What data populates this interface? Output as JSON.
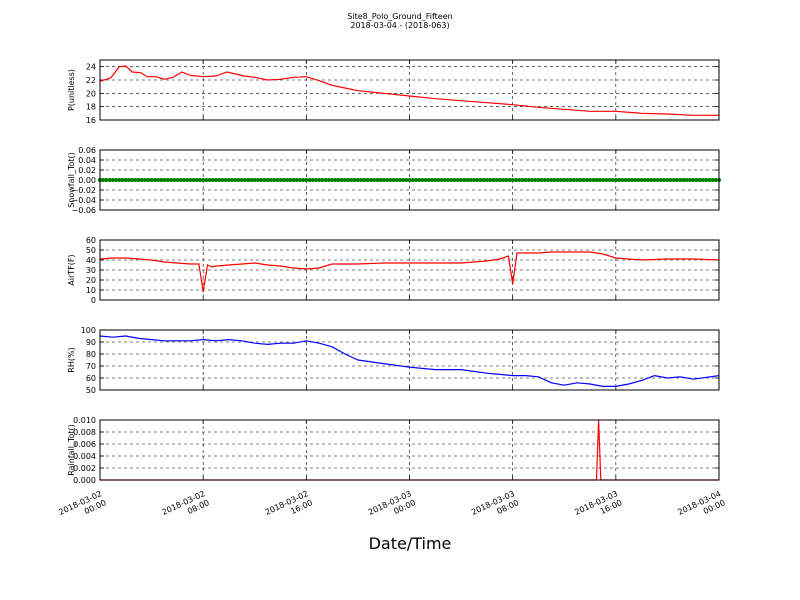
{
  "figure": {
    "title": "Site8_Polo_Ground_Fifteen",
    "subtitle": "2018-03-04 - (2018-063)",
    "xlabel": "Date/Time"
  },
  "colors": {
    "red": "#ff0000",
    "green": "#008000",
    "blue": "#0000ff",
    "frame": "#000000"
  },
  "chart_data": [
    {
      "type": "line",
      "ylabel": "P(unitless)",
      "ylim": [
        16,
        25
      ],
      "yticks": [
        16,
        18,
        20,
        22,
        24
      ],
      "ytick_labels": [
        "16",
        "18",
        "20",
        "22",
        "24"
      ],
      "xlim": [
        "2018-03-02 00:00",
        "2018-03-04 00:00"
      ],
      "grid": true,
      "series": [
        {
          "color": "#ff0000",
          "x": [
            "2018-03-02 00:00",
            "2018-03-02 00:50",
            "2018-03-02 01:30",
            "2018-03-02 02:00",
            "2018-03-02 02:30",
            "2018-03-02 03:10",
            "2018-03-02 03:40",
            "2018-03-02 04:20",
            "2018-03-02 05:00",
            "2018-03-02 05:40",
            "2018-03-02 06:20",
            "2018-03-02 07:00",
            "2018-03-02 07:30",
            "2018-03-02 08:00",
            "2018-03-02 09:00",
            "2018-03-02 09:50",
            "2018-03-02 10:30",
            "2018-03-02 11:10",
            "2018-03-02 12:00",
            "2018-03-02 13:00",
            "2018-03-02 14:00",
            "2018-03-02 15:00",
            "2018-03-02 16:00",
            "2018-03-02 17:00",
            "2018-03-02 18:00",
            "2018-03-02 19:00",
            "2018-03-02 20:00",
            "2018-03-02 22:00",
            "2018-03-03 00:00",
            "2018-03-03 02:00",
            "2018-03-03 04:00",
            "2018-03-03 06:00",
            "2018-03-03 08:00",
            "2018-03-03 10:00",
            "2018-03-03 12:00",
            "2018-03-03 14:00",
            "2018-03-03 16:00",
            "2018-03-03 18:00",
            "2018-03-03 20:00",
            "2018-03-03 22:00",
            "2018-03-04 00:00"
          ],
          "y": [
            21.8,
            22.3,
            24.0,
            24.1,
            23.2,
            23.1,
            22.5,
            22.5,
            22.1,
            22.4,
            23.2,
            22.7,
            22.6,
            22.5,
            22.6,
            23.2,
            22.9,
            22.6,
            22.4,
            22.0,
            22.1,
            22.4,
            22.5,
            21.9,
            21.2,
            20.8,
            20.4,
            20.0,
            19.6,
            19.2,
            18.9,
            18.6,
            18.3,
            17.9,
            17.6,
            17.3,
            17.3,
            17.0,
            16.9,
            16.7,
            16.7
          ]
        }
      ]
    },
    {
      "type": "scatter",
      "ylabel": "Snowfall_Tot()",
      "ylim": [
        -0.06,
        0.06
      ],
      "yticks": [
        -0.06,
        -0.04,
        -0.02,
        0.0,
        0.02,
        0.04,
        0.06
      ],
      "ytick_labels": [
        "−0.06",
        "−0.04",
        "−0.02",
        "0.00",
        "0.02",
        "0.04",
        "0.06"
      ],
      "xlim": [
        "2018-03-02 00:00",
        "2018-03-04 00:00"
      ],
      "grid": true,
      "series": [
        {
          "color": "#008000",
          "x": [
            "2018-03-02 00:00",
            "2018-03-04 00:00"
          ],
          "y": [
            0.0,
            0.0
          ],
          "note_constant": 0.0
        }
      ]
    },
    {
      "type": "line",
      "ylabel": "AirTF(F)",
      "ylim": [
        0,
        60
      ],
      "yticks": [
        0,
        10,
        20,
        30,
        40,
        50,
        60
      ],
      "ytick_labels": [
        "0",
        "10",
        "20",
        "30",
        "40",
        "50",
        "60"
      ],
      "xlim": [
        "2018-03-02 00:00",
        "2018-03-04 00:00"
      ],
      "grid": true,
      "series": [
        {
          "color": "#ff0000",
          "x": [
            "2018-03-02 00:00",
            "2018-03-02 01:00",
            "2018-03-02 02:00",
            "2018-03-02 03:00",
            "2018-03-02 04:00",
            "2018-03-02 05:00",
            "2018-03-02 06:00",
            "2018-03-02 07:00",
            "2018-03-02 07:40",
            "2018-03-02 08:00",
            "2018-03-02 08:20",
            "2018-03-02 08:40",
            "2018-03-02 09:00",
            "2018-03-02 10:00",
            "2018-03-02 11:00",
            "2018-03-02 12:00",
            "2018-03-02 13:00",
            "2018-03-02 14:00",
            "2018-03-02 15:00",
            "2018-03-02 16:00",
            "2018-03-02 17:00",
            "2018-03-02 18:00",
            "2018-03-02 20:00",
            "2018-03-02 22:00",
            "2018-03-03 00:00",
            "2018-03-03 02:00",
            "2018-03-03 04:00",
            "2018-03-03 05:00",
            "2018-03-03 06:00",
            "2018-03-03 07:00",
            "2018-03-03 07:40",
            "2018-03-03 08:00",
            "2018-03-03 08:20",
            "2018-03-03 09:00",
            "2018-03-03 10:00",
            "2018-03-03 11:00",
            "2018-03-03 12:00",
            "2018-03-03 13:00",
            "2018-03-03 14:00",
            "2018-03-03 15:00",
            "2018-03-03 16:00",
            "2018-03-03 17:00",
            "2018-03-03 18:00",
            "2018-03-03 20:00",
            "2018-03-03 22:00",
            "2018-03-04 00:00"
          ],
          "y": [
            41,
            42,
            42,
            41,
            40,
            38,
            37,
            36,
            36,
            8,
            35,
            33,
            34,
            35,
            36,
            37,
            35,
            34,
            32,
            31,
            32,
            36,
            36,
            37,
            37,
            37,
            37,
            38,
            39,
            41,
            44,
            16,
            47,
            47,
            47,
            48,
            48,
            48,
            48,
            46,
            42,
            41,
            40,
            41,
            41,
            40
          ]
        }
      ]
    },
    {
      "type": "line",
      "ylabel": "RH(%)",
      "ylim": [
        50,
        100
      ],
      "yticks": [
        50,
        60,
        70,
        80,
        90,
        100
      ],
      "ytick_labels": [
        "50",
        "60",
        "70",
        "80",
        "90",
        "100"
      ],
      "xlim": [
        "2018-03-02 00:00",
        "2018-03-04 00:00"
      ],
      "grid": true,
      "series": [
        {
          "color": "#0000ff",
          "x": [
            "2018-03-02 00:00",
            "2018-03-02 01:00",
            "2018-03-02 02:00",
            "2018-03-02 03:00",
            "2018-03-02 04:00",
            "2018-03-02 05:00",
            "2018-03-02 06:00",
            "2018-03-02 07:00",
            "2018-03-02 08:00",
            "2018-03-02 09:00",
            "2018-03-02 10:00",
            "2018-03-02 11:00",
            "2018-03-02 12:00",
            "2018-03-02 13:00",
            "2018-03-02 14:00",
            "2018-03-02 15:00",
            "2018-03-02 16:00",
            "2018-03-02 17:00",
            "2018-03-02 18:00",
            "2018-03-02 19:00",
            "2018-03-02 20:00",
            "2018-03-02 22:00",
            "2018-03-03 00:00",
            "2018-03-03 02:00",
            "2018-03-03 04:00",
            "2018-03-03 06:00",
            "2018-03-03 07:00",
            "2018-03-03 08:00",
            "2018-03-03 09:00",
            "2018-03-03 10:00",
            "2018-03-03 11:00",
            "2018-03-03 12:00",
            "2018-03-03 13:00",
            "2018-03-03 14:00",
            "2018-03-03 15:00",
            "2018-03-03 16:00",
            "2018-03-03 17:00",
            "2018-03-03 18:00",
            "2018-03-03 19:00",
            "2018-03-03 20:00",
            "2018-03-03 21:00",
            "2018-03-03 22:00",
            "2018-03-04 00:00"
          ],
          "y": [
            95,
            94,
            95,
            93,
            92,
            91,
            91,
            91,
            92,
            91,
            92,
            91,
            89,
            88,
            89,
            89,
            91,
            89,
            86,
            80,
            75,
            72,
            69,
            67,
            67,
            64,
            63,
            62,
            62,
            61,
            56,
            54,
            56,
            55,
            53,
            53,
            55,
            58,
            62,
            60,
            61,
            59,
            62
          ]
        }
      ]
    },
    {
      "type": "line",
      "ylabel": "Rainfall_Tot()",
      "ylim": [
        0.0,
        0.01
      ],
      "yticks": [
        0.0,
        0.002,
        0.004,
        0.006,
        0.008,
        0.01
      ],
      "ytick_labels": [
        "0.000",
        "0.002",
        "0.004",
        "0.006",
        "0.008",
        "0.010"
      ],
      "xlim": [
        "2018-03-02 00:00",
        "2018-03-04 00:00"
      ],
      "grid": true,
      "xtick_labels": [
        [
          "2018-03-02",
          "00:00"
        ],
        [
          "2018-03-02",
          "08:00"
        ],
        [
          "2018-03-02",
          "16:00"
        ],
        [
          "2018-03-03",
          "00:00"
        ],
        [
          "2018-03-03",
          "08:00"
        ],
        [
          "2018-03-03",
          "16:00"
        ],
        [
          "2018-03-04",
          "00:00"
        ]
      ],
      "series": [
        {
          "color": "#ff0000",
          "x": [
            "2018-03-02 00:00",
            "2018-03-03 14:30",
            "2018-03-03 14:40",
            "2018-03-03 14:50",
            "2018-03-04 00:00"
          ],
          "y": [
            0.0,
            0.0,
            0.01,
            0.0,
            0.0
          ]
        }
      ]
    }
  ]
}
